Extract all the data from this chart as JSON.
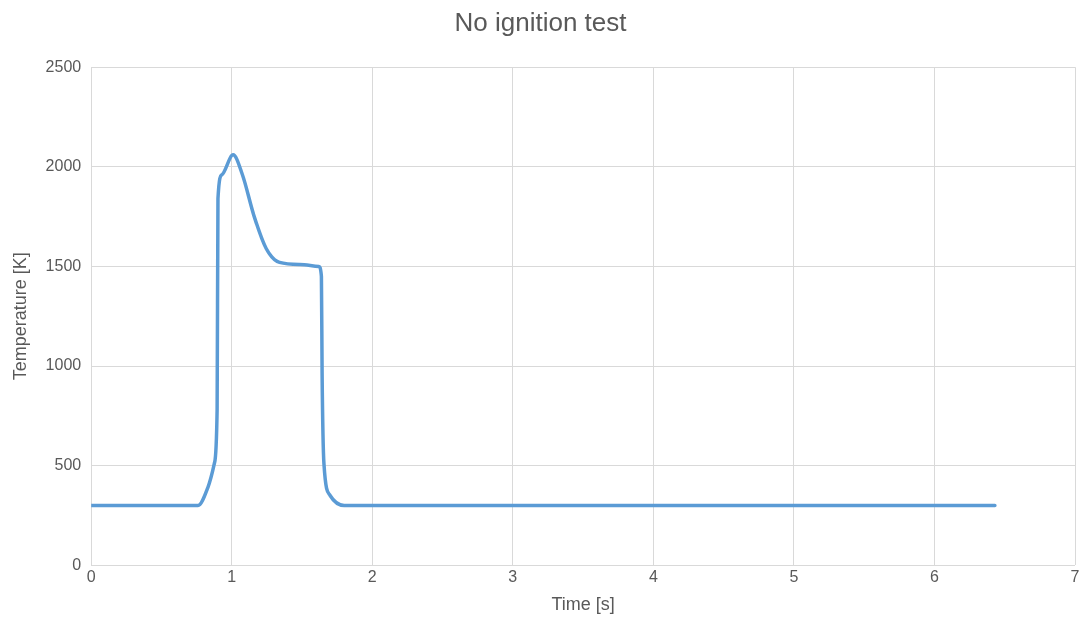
{
  "chart_data": {
    "type": "line",
    "title": "No ignition test",
    "xlabel": "Time [s]",
    "ylabel": "Temperature [K]",
    "series": [
      {
        "color": "#5b9bd5",
        "x": [
          0,
          0.7,
          0.76,
          0.83,
          0.876,
          0.896,
          0.902,
          0.93,
          1.01,
          1.076,
          1.16,
          1.245,
          1.34,
          1.485,
          1.62,
          1.638,
          1.643,
          1.656,
          1.7,
          1.8,
          2,
          3,
          4,
          5,
          6,
          6.43
        ],
        "values": [
          300,
          300,
          300,
          390,
          510,
          780,
          1840,
          1960,
          2060,
          1960,
          1750,
          1590,
          1520,
          1510,
          1500,
          1450,
          960,
          510,
          350,
          300,
          300,
          300,
          300,
          300,
          300,
          300
        ]
      }
    ],
    "xlim": [
      0,
      7
    ],
    "xticks": [
      0,
      1,
      2,
      3,
      4,
      5,
      6,
      7
    ],
    "ylim": [
      0,
      2500
    ],
    "yticks": [
      0,
      500,
      1000,
      1500,
      2000,
      2500
    ],
    "grid": true,
    "legend": false,
    "marker": "none",
    "line_style": "solid"
  }
}
